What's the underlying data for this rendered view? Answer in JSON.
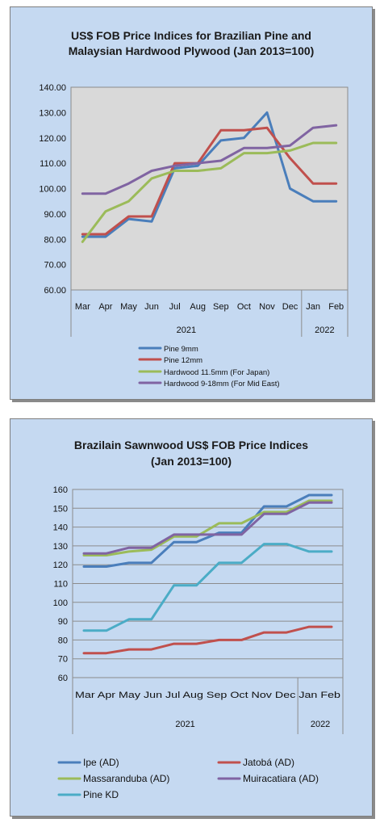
{
  "chart_data": [
    {
      "type": "line",
      "title_line1": "US$ FOB Price Indices for Brazilian Pine and",
      "title_line2": "Malaysian Hardwood Plywood (Jan 2013=100)",
      "categories": [
        "Mar",
        "Apr",
        "May",
        "Jun",
        "Jul",
        "Aug",
        "Sep",
        "Oct",
        "Nov",
        "Dec",
        "Jan",
        "Feb"
      ],
      "year_groups": [
        {
          "label": "2021",
          "span": 10
        },
        {
          "label": "2022",
          "span": 2
        }
      ],
      "y_ticks": [
        "60.00",
        "70.00",
        "80.00",
        "90.00",
        "100.00",
        "110.00",
        "120.00",
        "130.00",
        "140.00"
      ],
      "ylim": [
        60,
        140
      ],
      "grid": false,
      "legend_position": "bottom",
      "series": [
        {
          "name": "Pine 9mm",
          "color": "#4a7ebb",
          "values": [
            81,
            81,
            88,
            87,
            108,
            109,
            119,
            120,
            130,
            100,
            95,
            95
          ]
        },
        {
          "name": "Pine 12mm",
          "color": "#c0504d",
          "values": [
            82,
            82,
            89,
            89,
            110,
            110,
            123,
            123,
            124,
            112,
            102,
            102
          ]
        },
        {
          "name": "Hardwood 11.5mm (For Japan)",
          "color": "#9bbb59",
          "values": [
            79,
            91,
            95,
            104,
            107,
            107,
            108,
            114,
            114,
            115,
            118,
            118
          ]
        },
        {
          "name": "Hardwood 9-18mm (For Mid East)",
          "color": "#8064a2",
          "values": [
            98,
            98,
            102,
            107,
            109,
            110,
            111,
            116,
            116,
            117,
            124,
            125
          ]
        }
      ]
    },
    {
      "type": "line",
      "title_line1": "Brazilain Sawnwood US$ FOB Price Indices",
      "title_line2": "(Jan 2013=100)",
      "categories": [
        "Mar",
        "Apr",
        "May",
        "Jun",
        "Jul",
        "Aug",
        "Sep",
        "Oct",
        "Nov",
        "Dec",
        "Jan",
        "Feb"
      ],
      "category_labels_text": "Mar Apr May Jun Jul Aug Sep Oct Nov Dec Jan Feb",
      "year_groups": [
        {
          "label": "2021",
          "span": 10
        },
        {
          "label": "2022",
          "span": 2
        }
      ],
      "y_ticks": [
        "60",
        "70",
        "80",
        "90",
        "100",
        "110",
        "120",
        "130",
        "140",
        "150",
        "160"
      ],
      "ylim": [
        60,
        160
      ],
      "grid": true,
      "legend_position": "bottom",
      "series": [
        {
          "name": "Ipe (AD)",
          "color": "#4a7ebb",
          "values": [
            119,
            119,
            121,
            121,
            132,
            132,
            137,
            137,
            151,
            151,
            157,
            157
          ]
        },
        {
          "name": "Jatobá (AD)",
          "color": "#c0504d",
          "values": [
            73,
            73,
            75,
            75,
            78,
            78,
            80,
            80,
            84,
            84,
            87,
            87
          ]
        },
        {
          "name": "Massaranduba (AD)",
          "color": "#9bbb59",
          "values": [
            125,
            125,
            127,
            128,
            135,
            135,
            142,
            142,
            148,
            148,
            154,
            154
          ]
        },
        {
          "name": "Muiracatiara (AD)",
          "color": "#8064a2",
          "values": [
            126,
            126,
            129,
            129,
            136,
            136,
            136,
            136,
            147,
            147,
            153,
            153
          ]
        },
        {
          "name": "Pine KD",
          "color": "#4bacc6",
          "values": [
            85,
            85,
            91,
            91,
            109,
            109,
            121,
            121,
            131,
            131,
            127,
            127
          ]
        }
      ]
    }
  ]
}
